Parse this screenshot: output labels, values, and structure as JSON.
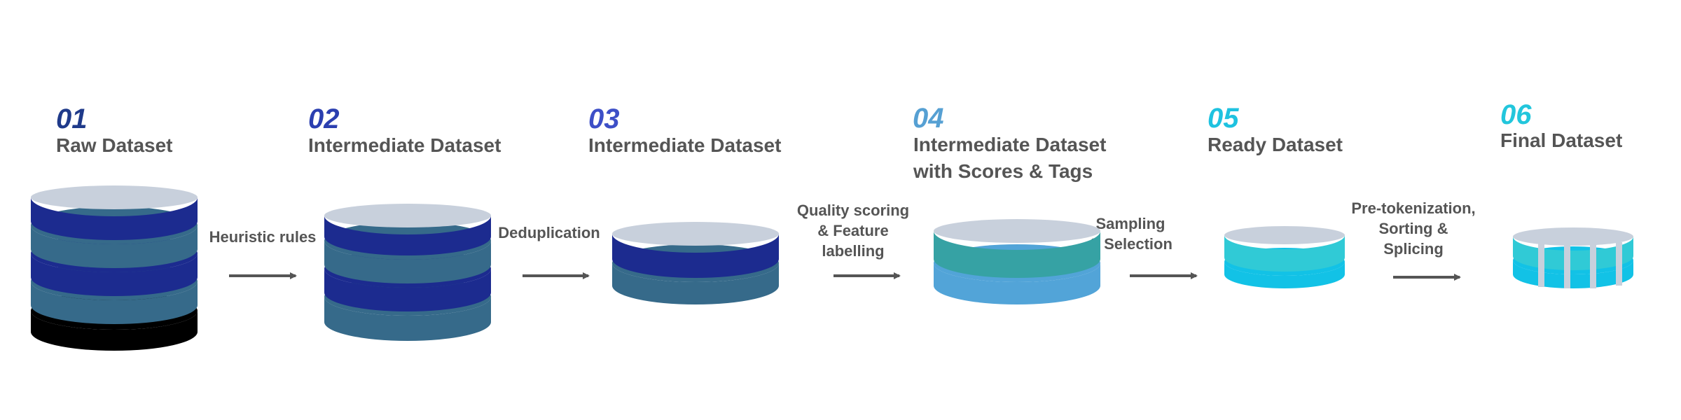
{
  "stages": [
    {
      "number": "01",
      "title_lines": [
        "Raw Dataset"
      ],
      "number_color": "#1f3a8a"
    },
    {
      "number": "02",
      "title_lines": [
        "Intermediate Dataset"
      ],
      "number_color": "#2b3fb0"
    },
    {
      "number": "03",
      "title_lines": [
        "Intermediate Dataset"
      ],
      "number_color": "#3d4fc7"
    },
    {
      "number": "04",
      "title_lines": [
        "Intermediate Dataset",
        "with Scores & Tags"
      ],
      "number_color": "#56a0d3"
    },
    {
      "number": "05",
      "title_lines": [
        "Ready Dataset"
      ],
      "number_color": "#1ec2e0"
    },
    {
      "number": "06",
      "title_lines": [
        "Final Dataset"
      ],
      "number_color": "#22c6dc"
    }
  ],
  "processes": [
    {
      "lines": [
        "Heuristic rules"
      ]
    },
    {
      "lines": [
        "Deduplication"
      ]
    },
    {
      "lines": [
        "Quality scoring",
        "& Feature",
        "labelling"
      ]
    },
    {
      "lines": [
        "Sampling",
        "& Selection"
      ]
    },
    {
      "lines": [
        "Pre-tokenization,",
        "Sorting &",
        "Splicing"
      ]
    }
  ],
  "colors": {
    "cap": "#c8d0dc",
    "navy": "#1c2b8f",
    "steel": "#366a8a",
    "black": "#000000",
    "teal": "#36a2a4",
    "sky": "#52a4d8",
    "cyan_light": "#30cad6",
    "cyan": "#12c2e6",
    "arrow": "#555555",
    "text": "#555555"
  }
}
